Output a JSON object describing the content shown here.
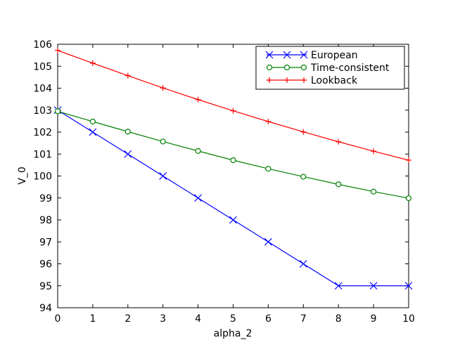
{
  "chart_data": {
    "type": "line",
    "title": "",
    "xlabel": "alpha_2",
    "ylabel": "V_0",
    "xlim": [
      0,
      10
    ],
    "ylim": [
      94,
      106
    ],
    "xticks": [
      0,
      1,
      2,
      3,
      4,
      5,
      6,
      7,
      8,
      9,
      10
    ],
    "yticks": [
      94,
      95,
      96,
      97,
      98,
      99,
      100,
      101,
      102,
      103,
      104,
      105,
      106
    ],
    "grid": false,
    "legend_position": "top-right",
    "x": [
      0,
      1,
      2,
      3,
      4,
      5,
      6,
      7,
      8,
      9,
      10
    ],
    "series": [
      {
        "name": "European",
        "color": "#0000ff",
        "marker": "x",
        "values": [
          103,
          102,
          101,
          100,
          99,
          98,
          97,
          96,
          95,
          95,
          95
        ]
      },
      {
        "name": "Time-consistent",
        "color": "#008000",
        "marker": "circle",
        "values": [
          102.95,
          102.48,
          102.02,
          101.57,
          101.14,
          100.72,
          100.33,
          99.97,
          99.62,
          99.29,
          98.99
        ]
      },
      {
        "name": "Lookback",
        "color": "#ff0000",
        "marker": "plus",
        "values": [
          105.72,
          105.14,
          104.57,
          104.01,
          103.48,
          102.97,
          102.48,
          102.01,
          101.56,
          101.13,
          100.72
        ]
      }
    ]
  }
}
